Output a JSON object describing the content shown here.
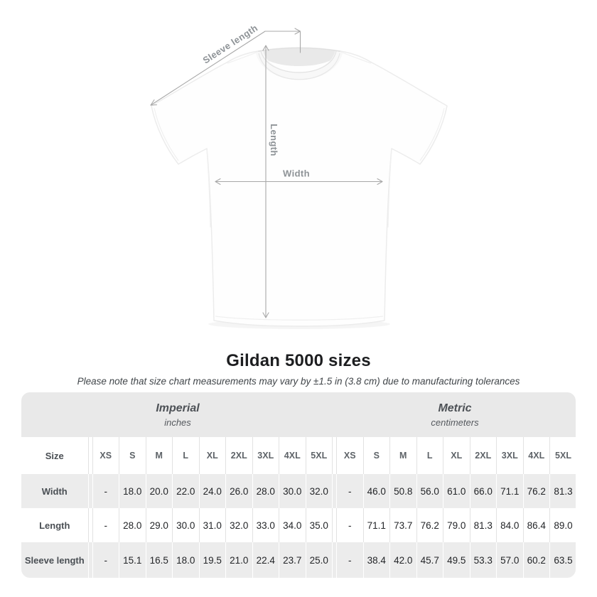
{
  "diagram": {
    "labels": {
      "sleeve_length": "Sleeve length",
      "length": "Length",
      "width": "Width"
    },
    "annotation_color": "#a8a8a8",
    "label_color": "#8e9397"
  },
  "chart_data": {
    "type": "table",
    "title": "Gildan 5000 sizes",
    "subtitle": "Please note that size chart measurements may vary by ±1.5 in (3.8 cm) due to manufacturing tolerances",
    "row_header": "Size",
    "sections": [
      {
        "name": "Imperial",
        "unit": "inches",
        "sizes": [
          "XS",
          "S",
          "M",
          "L",
          "XL",
          "2XL",
          "3XL",
          "4XL",
          "5XL"
        ]
      },
      {
        "name": "Metric",
        "unit": "centimeters",
        "sizes": [
          "XS",
          "S",
          "M",
          "L",
          "XL",
          "2XL",
          "3XL",
          "4XL",
          "5XL"
        ]
      }
    ],
    "measurements": [
      {
        "label": "Width",
        "imperial": [
          "-",
          "18.0",
          "20.0",
          "22.0",
          "24.0",
          "26.0",
          "28.0",
          "30.0",
          "32.0"
        ],
        "metric": [
          "-",
          "46.0",
          "50.8",
          "56.0",
          "61.0",
          "66.0",
          "71.1",
          "76.2",
          "81.3"
        ]
      },
      {
        "label": "Length",
        "imperial": [
          "-",
          "28.0",
          "29.0",
          "30.0",
          "31.0",
          "32.0",
          "33.0",
          "34.0",
          "35.0"
        ],
        "metric": [
          "-",
          "71.1",
          "73.7",
          "76.2",
          "79.0",
          "81.3",
          "84.0",
          "86.4",
          "89.0"
        ]
      },
      {
        "label": "Sleeve length",
        "imperial": [
          "-",
          "15.1",
          "16.5",
          "18.0",
          "19.5",
          "21.0",
          "22.4",
          "23.7",
          "25.0"
        ],
        "metric": [
          "-",
          "38.4",
          "42.0",
          "45.7",
          "49.5",
          "53.3",
          "57.0",
          "60.2",
          "63.5"
        ]
      }
    ],
    "layout": {
      "stripe_color": "#ececec",
      "band_color": "#e9e9e9",
      "divider_color": "#e2e2e2"
    }
  }
}
